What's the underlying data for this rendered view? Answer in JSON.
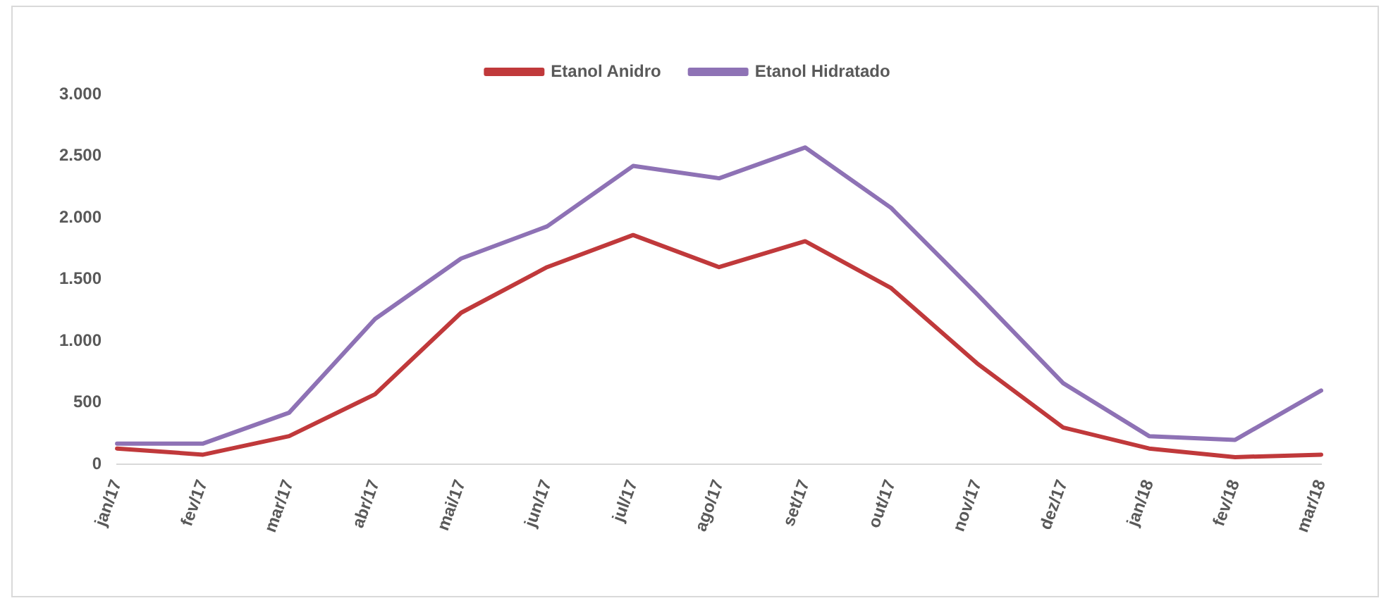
{
  "chart_data": {
    "type": "line",
    "categories": [
      "jan/17",
      "fev/17",
      "mar/17",
      "abr/17",
      "mai/17",
      "jun/17",
      "jul/17",
      "ago/17",
      "set/17",
      "out/17",
      "nov/17",
      "dez/17",
      "jan/18",
      "fev/18",
      "mar/18"
    ],
    "series": [
      {
        "name": "Etanol Anidro",
        "color": "#c0393b",
        "values": [
          130,
          80,
          230,
          570,
          1230,
          1600,
          1860,
          1600,
          1810,
          1430,
          820,
          300,
          130,
          60,
          80
        ]
      },
      {
        "name": "Etanol Hidratado",
        "color": "#8e72b5",
        "values": [
          170,
          170,
          420,
          1180,
          1670,
          1930,
          2420,
          2320,
          2570,
          2080,
          1380,
          660,
          230,
          200,
          600
        ]
      }
    ],
    "ylim": [
      0,
      3000
    ],
    "yticks": [
      {
        "value": 0,
        "label": "0"
      },
      {
        "value": 500,
        "label": "500"
      },
      {
        "value": 1000,
        "label": "1.000"
      },
      {
        "value": 1500,
        "label": "1.500"
      },
      {
        "value": 2000,
        "label": "2.000"
      },
      {
        "value": 2500,
        "label": "2.500"
      },
      {
        "value": 3000,
        "label": "3.000"
      }
    ],
    "grid": false,
    "legend": "top",
    "marker": "none",
    "line_style": "solid"
  }
}
